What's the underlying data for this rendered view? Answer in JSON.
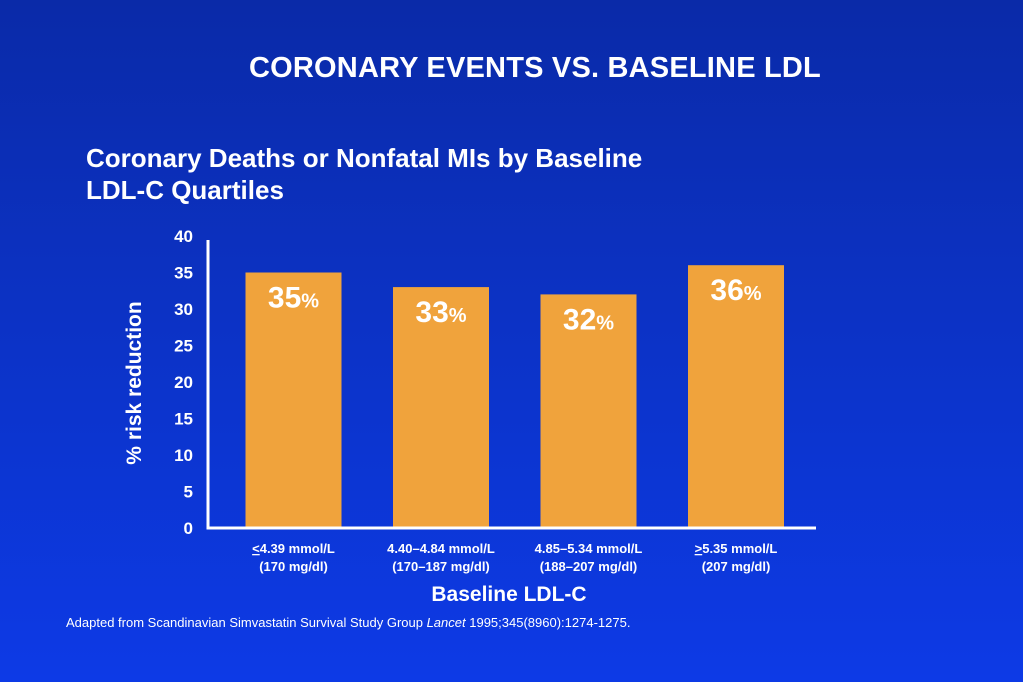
{
  "slide": {
    "title": "CORONARY EVENTS VS. BASELINE LDL",
    "footnote": {
      "before": "Adapted from Scandinavian Simvastatin Survival Study Group ",
      "journal": "Lancet",
      "after": " 1995;345(8960):1274-1275."
    }
  },
  "colors": {
    "background": "#0c32c4",
    "bar": "#f0a33c",
    "axis": "#ffffff",
    "text": "#ffffff"
  },
  "chart_data": {
    "type": "bar",
    "title_lines": [
      "Coronary Deaths or Nonfatal MIs by Baseline",
      "LDL-C Quartiles"
    ],
    "xlabel": "Baseline LDL-C",
    "ylabel": "% risk reduction",
    "ylim": [
      0,
      40
    ],
    "yticks": [
      0,
      5,
      10,
      15,
      20,
      25,
      30,
      35,
      40
    ],
    "grid": false,
    "categories": [
      {
        "line1": "<4.39 mmol/L",
        "line2": "(170 mg/dl)"
      },
      {
        "line1": "4.40–4.84 mmol/L",
        "line2": "(170–187 mg/dl)"
      },
      {
        "line1": "4.85–5.34 mmol/L",
        "line2": "(188–207 mg/dl)"
      },
      {
        "line1": ">5.35 mmol/L",
        "line2": "(207 mg/dl)"
      }
    ],
    "values": [
      35,
      33,
      32,
      36
    ],
    "data_labels": [
      {
        "number": "35",
        "unit": "%"
      },
      {
        "number": "33",
        "unit": "%"
      },
      {
        "number": "32",
        "unit": "%"
      },
      {
        "number": "36",
        "unit": "%"
      }
    ]
  }
}
